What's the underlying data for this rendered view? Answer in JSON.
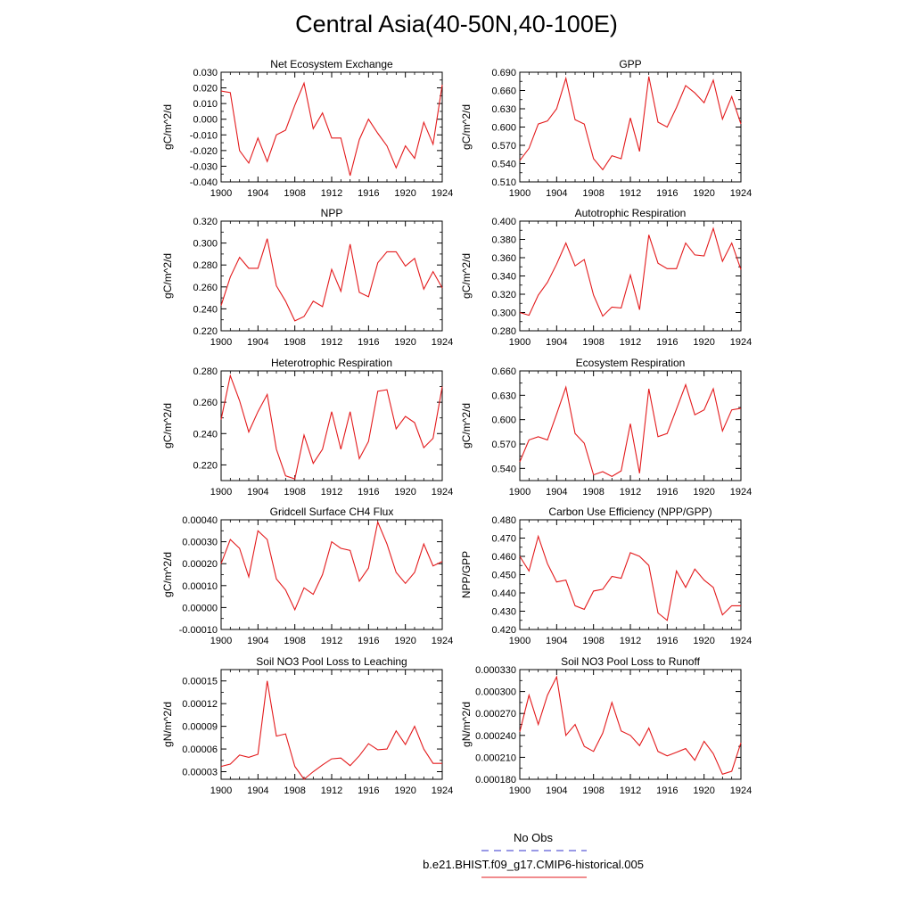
{
  "figure": {
    "title": "Central Asia(40-50N,40-100E)"
  },
  "legend": {
    "items": [
      {
        "label": "No Obs",
        "color": "#3333cc",
        "dash": true
      },
      {
        "label": "b.e21.BHIST.f09_g17.CMIP6-historical.005",
        "color": "#e31a1c",
        "dash": false
      }
    ]
  },
  "line_color": "#e31a1c",
  "chart_data": [
    {
      "type": "line",
      "title": "Net Ecosystem Exchange",
      "xlabel": "",
      "ylabel": "gC/m^2/d",
      "xlim": [
        1900,
        1924
      ],
      "ylim": [
        -0.04,
        0.03
      ],
      "yticks": [
        -0.04,
        -0.03,
        -0.02,
        -0.01,
        0.0,
        0.01,
        0.02,
        0.03
      ],
      "yticklabels": [
        "-0.040",
        "-0.030",
        "-0.020",
        "-0.010",
        "0.000",
        "0.010",
        "0.020",
        "0.030"
      ],
      "xticks": [
        1900,
        1904,
        1908,
        1912,
        1916,
        1920,
        1924
      ],
      "xticklabels": [
        "1900",
        "1904",
        "1908",
        "1912",
        "1916",
        "1920",
        "1924"
      ],
      "x": [
        1900,
        1901,
        1902,
        1903,
        1904,
        1905,
        1906,
        1907,
        1908,
        1909,
        1910,
        1911,
        1912,
        1913,
        1914,
        1915,
        1916,
        1917,
        1918,
        1919,
        1920,
        1921,
        1922,
        1923,
        1924
      ],
      "values": [
        0.018,
        0.017,
        -0.02,
        -0.028,
        -0.012,
        -0.027,
        -0.01,
        -0.007,
        0.009,
        0.023,
        -0.006,
        0.004,
        -0.012,
        -0.012,
        -0.036,
        -0.013,
        0.0,
        -0.009,
        -0.017,
        -0.031,
        -0.017,
        -0.025,
        -0.002,
        -0.016,
        0.022
      ]
    },
    {
      "type": "line",
      "title": "GPP",
      "xlabel": "",
      "ylabel": "gC/m^2/d",
      "xlim": [
        1900,
        1924
      ],
      "ylim": [
        0.51,
        0.69
      ],
      "yticks": [
        0.51,
        0.54,
        0.57,
        0.6,
        0.63,
        0.66,
        0.69
      ],
      "yticklabels": [
        "0.510",
        "0.540",
        "0.570",
        "0.600",
        "0.630",
        "0.660",
        "0.690"
      ],
      "xticks": [
        1900,
        1904,
        1908,
        1912,
        1916,
        1920,
        1924
      ],
      "xticklabels": [
        "1900",
        "1904",
        "1908",
        "1912",
        "1916",
        "1920",
        "1924"
      ],
      "x": [
        1900,
        1901,
        1902,
        1903,
        1904,
        1905,
        1906,
        1907,
        1908,
        1909,
        1910,
        1911,
        1912,
        1913,
        1914,
        1915,
        1916,
        1917,
        1918,
        1919,
        1920,
        1921,
        1922,
        1923,
        1924
      ],
      "values": [
        0.545,
        0.565,
        0.605,
        0.61,
        0.63,
        0.68,
        0.612,
        0.605,
        0.548,
        0.53,
        0.553,
        0.548,
        0.615,
        0.56,
        0.683,
        0.608,
        0.6,
        0.632,
        0.668,
        0.656,
        0.64,
        0.677,
        0.613,
        0.65,
        0.605
      ]
    },
    {
      "type": "line",
      "title": "NPP",
      "xlabel": "",
      "ylabel": "gC/m^2/d",
      "xlim": [
        1900,
        1924
      ],
      "ylim": [
        0.22,
        0.32
      ],
      "yticks": [
        0.22,
        0.24,
        0.26,
        0.28,
        0.3,
        0.32
      ],
      "yticklabels": [
        "0.220",
        "0.240",
        "0.260",
        "0.280",
        "0.300",
        "0.320"
      ],
      "xticks": [
        1900,
        1904,
        1908,
        1912,
        1916,
        1920,
        1924
      ],
      "xticklabels": [
        "1900",
        "1904",
        "1908",
        "1912",
        "1916",
        "1920",
        "1924"
      ],
      "x": [
        1900,
        1901,
        1902,
        1903,
        1904,
        1905,
        1906,
        1907,
        1908,
        1909,
        1910,
        1911,
        1912,
        1913,
        1914,
        1915,
        1916,
        1917,
        1918,
        1919,
        1920,
        1921,
        1922,
        1923,
        1924
      ],
      "values": [
        0.243,
        0.269,
        0.287,
        0.277,
        0.277,
        0.304,
        0.261,
        0.247,
        0.229,
        0.233,
        0.247,
        0.242,
        0.276,
        0.256,
        0.299,
        0.255,
        0.251,
        0.282,
        0.292,
        0.292,
        0.279,
        0.286,
        0.258,
        0.274,
        0.259
      ]
    },
    {
      "type": "line",
      "title": "Autotrophic Respiration",
      "xlabel": "",
      "ylabel": "gC/m^2/d",
      "xlim": [
        1900,
        1924
      ],
      "ylim": [
        0.28,
        0.4
      ],
      "yticks": [
        0.28,
        0.3,
        0.32,
        0.34,
        0.36,
        0.38,
        0.4
      ],
      "yticklabels": [
        "0.280",
        "0.300",
        "0.320",
        "0.340",
        "0.360",
        "0.380",
        "0.400"
      ],
      "xticks": [
        1900,
        1904,
        1908,
        1912,
        1916,
        1920,
        1924
      ],
      "xticklabels": [
        "1900",
        "1904",
        "1908",
        "1912",
        "1916",
        "1920",
        "1924"
      ],
      "x": [
        1900,
        1901,
        1902,
        1903,
        1904,
        1905,
        1906,
        1907,
        1908,
        1909,
        1910,
        1911,
        1912,
        1913,
        1914,
        1915,
        1916,
        1917,
        1918,
        1919,
        1920,
        1921,
        1922,
        1923,
        1924
      ],
      "values": [
        0.3,
        0.297,
        0.319,
        0.333,
        0.353,
        0.376,
        0.351,
        0.358,
        0.319,
        0.296,
        0.306,
        0.305,
        0.341,
        0.303,
        0.385,
        0.354,
        0.348,
        0.348,
        0.376,
        0.363,
        0.362,
        0.392,
        0.356,
        0.376,
        0.347
      ]
    },
    {
      "type": "line",
      "title": "Heterotrophic Respiration",
      "xlabel": "",
      "ylabel": "gC/m^2/d",
      "xlim": [
        1900,
        1924
      ],
      "ylim": [
        0.21,
        0.28
      ],
      "yticks": [
        0.22,
        0.24,
        0.26,
        0.28
      ],
      "yticklabels": [
        "0.220",
        "0.240",
        "0.260",
        "0.280"
      ],
      "xticks": [
        1900,
        1904,
        1908,
        1912,
        1916,
        1920,
        1924
      ],
      "xticklabels": [
        "1900",
        "1904",
        "1908",
        "1912",
        "1916",
        "1920",
        "1924"
      ],
      "x": [
        1900,
        1901,
        1902,
        1903,
        1904,
        1905,
        1906,
        1907,
        1908,
        1909,
        1910,
        1911,
        1912,
        1913,
        1914,
        1915,
        1916,
        1917,
        1918,
        1919,
        1920,
        1921,
        1922,
        1923,
        1924
      ],
      "values": [
        0.249,
        0.277,
        0.261,
        0.241,
        0.254,
        0.265,
        0.23,
        0.213,
        0.211,
        0.239,
        0.221,
        0.23,
        0.254,
        0.23,
        0.254,
        0.224,
        0.235,
        0.267,
        0.268,
        0.243,
        0.251,
        0.247,
        0.231,
        0.237,
        0.27
      ]
    },
    {
      "type": "line",
      "title": "Ecosystem Respiration",
      "xlabel": "",
      "ylabel": "gC/m^2/d",
      "xlim": [
        1900,
        1924
      ],
      "ylim": [
        0.525,
        0.66
      ],
      "yticks": [
        0.54,
        0.57,
        0.6,
        0.63,
        0.66
      ],
      "yticklabels": [
        "0.540",
        "0.570",
        "0.600",
        "0.630",
        "0.660"
      ],
      "xticks": [
        1900,
        1904,
        1908,
        1912,
        1916,
        1920,
        1924
      ],
      "xticklabels": [
        "1900",
        "1904",
        "1908",
        "1912",
        "1916",
        "1920",
        "1924"
      ],
      "x": [
        1900,
        1901,
        1902,
        1903,
        1904,
        1905,
        1906,
        1907,
        1908,
        1909,
        1910,
        1911,
        1912,
        1913,
        1914,
        1915,
        1916,
        1917,
        1918,
        1919,
        1920,
        1921,
        1922,
        1923,
        1924
      ],
      "values": [
        0.548,
        0.575,
        0.579,
        0.575,
        0.607,
        0.64,
        0.583,
        0.571,
        0.532,
        0.536,
        0.53,
        0.537,
        0.595,
        0.534,
        0.638,
        0.579,
        0.583,
        0.613,
        0.643,
        0.606,
        0.612,
        0.638,
        0.586,
        0.612,
        0.614
      ]
    },
    {
      "type": "line",
      "title": "Gridcell Surface CH4 Flux",
      "xlabel": "",
      "ylabel": "gC/m^2/d",
      "xlim": [
        1900,
        1924
      ],
      "ylim": [
        -0.0001,
        0.0004
      ],
      "yticks": [
        -0.0001,
        0.0,
        0.0001,
        0.0002,
        0.0003,
        0.0004
      ],
      "yticklabels": [
        "-0.00010",
        "0.00000",
        "0.00010",
        "0.00020",
        "0.00030",
        "0.00040"
      ],
      "xticks": [
        1900,
        1904,
        1908,
        1912,
        1916,
        1920,
        1924
      ],
      "xticklabels": [
        "1900",
        "1904",
        "1908",
        "1912",
        "1916",
        "1920",
        "1924"
      ],
      "x": [
        1900,
        1901,
        1902,
        1903,
        1904,
        1905,
        1906,
        1907,
        1908,
        1909,
        1910,
        1911,
        1912,
        1913,
        1914,
        1915,
        1916,
        1917,
        1918,
        1919,
        1920,
        1921,
        1922,
        1923,
        1924
      ],
      "values": [
        0.0002,
        0.00031,
        0.00027,
        0.00014,
        0.00035,
        0.00031,
        0.00013,
        8e-05,
        -1e-05,
        9e-05,
        6e-05,
        0.00015,
        0.0003,
        0.00027,
        0.00026,
        0.00012,
        0.00018,
        0.00039,
        0.00029,
        0.00016,
        0.00011,
        0.00016,
        0.00029,
        0.00019,
        0.00021
      ]
    },
    {
      "type": "line",
      "title": "Carbon Use Efficiency (NPP/GPP)",
      "xlabel": "",
      "ylabel": "NPP/GPP",
      "xlim": [
        1900,
        1924
      ],
      "ylim": [
        0.42,
        0.48
      ],
      "yticks": [
        0.42,
        0.43,
        0.44,
        0.45,
        0.46,
        0.47,
        0.48
      ],
      "yticklabels": [
        "0.420",
        "0.430",
        "0.440",
        "0.450",
        "0.460",
        "0.470",
        "0.480"
      ],
      "xticks": [
        1900,
        1904,
        1908,
        1912,
        1916,
        1920,
        1924
      ],
      "xticklabels": [
        "1900",
        "1904",
        "1908",
        "1912",
        "1916",
        "1920",
        "1924"
      ],
      "x": [
        1900,
        1901,
        1902,
        1903,
        1904,
        1905,
        1906,
        1907,
        1908,
        1909,
        1910,
        1911,
        1912,
        1913,
        1914,
        1915,
        1916,
        1917,
        1918,
        1919,
        1920,
        1921,
        1922,
        1923,
        1924
      ],
      "values": [
        0.46,
        0.452,
        0.471,
        0.456,
        0.446,
        0.447,
        0.433,
        0.431,
        0.441,
        0.442,
        0.449,
        0.448,
        0.462,
        0.46,
        0.455,
        0.429,
        0.425,
        0.452,
        0.443,
        0.453,
        0.447,
        0.443,
        0.428,
        0.433,
        0.433
      ]
    },
    {
      "type": "line",
      "title": "Soil NO3 Pool Loss to Leaching",
      "xlabel": "",
      "ylabel": "gN/m^2/d",
      "xlim": [
        1900,
        1924
      ],
      "ylim": [
        2e-05,
        0.000165
      ],
      "yticks": [
        3e-05,
        6e-05,
        9e-05,
        0.00012,
        0.00015
      ],
      "yticklabels": [
        "0.00003",
        "0.00006",
        "0.00009",
        "0.00012",
        "0.00015"
      ],
      "xticks": [
        1900,
        1904,
        1908,
        1912,
        1916,
        1920,
        1924
      ],
      "xticklabels": [
        "1900",
        "1904",
        "1908",
        "1912",
        "1916",
        "1920",
        "1924"
      ],
      "x": [
        1900,
        1901,
        1902,
        1903,
        1904,
        1905,
        1906,
        1907,
        1908,
        1909,
        1910,
        1911,
        1912,
        1913,
        1914,
        1915,
        1916,
        1917,
        1918,
        1919,
        1920,
        1921,
        1922,
        1923,
        1924
      ],
      "values": [
        3.7e-05,
        4e-05,
        5.2e-05,
        4.9e-05,
        5.3e-05,
        0.00015,
        7.7e-05,
        8e-05,
        3.7e-05,
        2e-05,
        3e-05,
        3.9e-05,
        4.7e-05,
        4.8e-05,
        3.8e-05,
        5.1e-05,
        6.7e-05,
        5.9e-05,
        6e-05,
        8.4e-05,
        6.6e-05,
        9e-05,
        6e-05,
        4.1e-05,
        4.1e-05
      ]
    },
    {
      "type": "line",
      "title": "Soil NO3 Pool Loss to Runoff",
      "xlabel": "",
      "ylabel": "gN/m^2/d",
      "xlim": [
        1900,
        1924
      ],
      "ylim": [
        0.00018,
        0.00033
      ],
      "yticks": [
        0.00018,
        0.00021,
        0.00024,
        0.00027,
        0.0003,
        0.00033
      ],
      "yticklabels": [
        "0.000180",
        "0.000210",
        "0.000240",
        "0.000270",
        "0.000300",
        "0.000330"
      ],
      "xticks": [
        1900,
        1904,
        1908,
        1912,
        1916,
        1920,
        1924
      ],
      "xticklabels": [
        "1900",
        "1904",
        "1908",
        "1912",
        "1916",
        "1920",
        "1924"
      ],
      "x": [
        1900,
        1901,
        1902,
        1903,
        1904,
        1905,
        1906,
        1907,
        1908,
        1909,
        1910,
        1911,
        1912,
        1913,
        1914,
        1915,
        1916,
        1917,
        1918,
        1919,
        1920,
        1921,
        1922,
        1923,
        1924
      ],
      "values": [
        0.000245,
        0.000295,
        0.000255,
        0.000295,
        0.00032,
        0.00024,
        0.000255,
        0.000225,
        0.000218,
        0.000243,
        0.000285,
        0.000246,
        0.00024,
        0.000226,
        0.00025,
        0.000218,
        0.000212,
        0.000217,
        0.000222,
        0.000206,
        0.000232,
        0.000215,
        0.000187,
        0.000191,
        0.00023
      ]
    }
  ]
}
